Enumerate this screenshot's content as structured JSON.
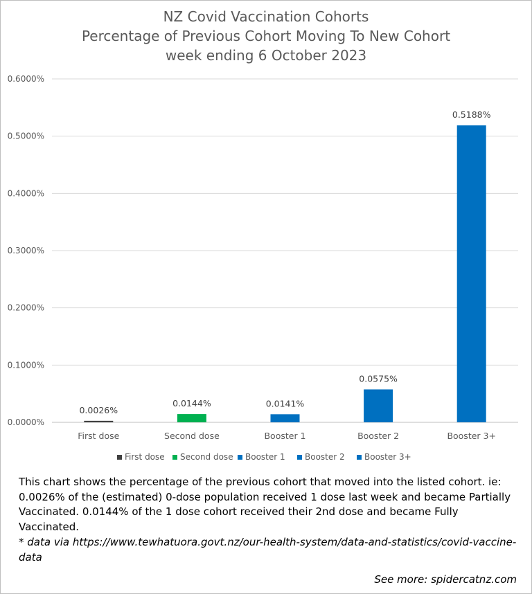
{
  "chart_data": {
    "type": "bar",
    "title": [
      "NZ Covid Vaccination Cohorts",
      "Percentage of Previous Cohort Moving To New Cohort",
      "week ending 6 October 2023"
    ],
    "categories": [
      "First dose",
      "Second dose",
      "Booster 1",
      "Booster 2",
      "Booster 3+"
    ],
    "values": [
      0.0026,
      0.0144,
      0.0141,
      0.0575,
      0.5188
    ],
    "data_labels": [
      "0.0026%",
      "0.0144%",
      "0.0141%",
      "0.0575%",
      "0.5188%"
    ],
    "colors": [
      "#404040",
      "#00b050",
      "#0070c0",
      "#0070c0",
      "#0070c0"
    ],
    "ylim": [
      0,
      0.6
    ],
    "yticks": [
      "0.0000%",
      "0.1000%",
      "0.2000%",
      "0.3000%",
      "0.4000%",
      "0.5000%",
      "0.6000%"
    ],
    "grid": true,
    "legend": {
      "placement": "bottom",
      "entries": [
        "First dose",
        "Second dose",
        "Booster 1",
        "Booster 2",
        "Booster 3+"
      ]
    },
    "xlabel": "",
    "ylabel": ""
  },
  "caption": "This chart shows the percentage of the previous cohort that moved into the listed cohort.  ie: 0.0026% of the (estimated) 0-dose population received 1 dose last week and became Partially Vaccinated.  0.0144% of the 1 dose cohort received their 2nd dose and became Fully Vaccinated.",
  "source": "* data via https://www.tewhatuora.govt.nz/our-health-system/data-and-statistics/covid-vaccine-data",
  "see_more": "See more: spidercatnz.com"
}
